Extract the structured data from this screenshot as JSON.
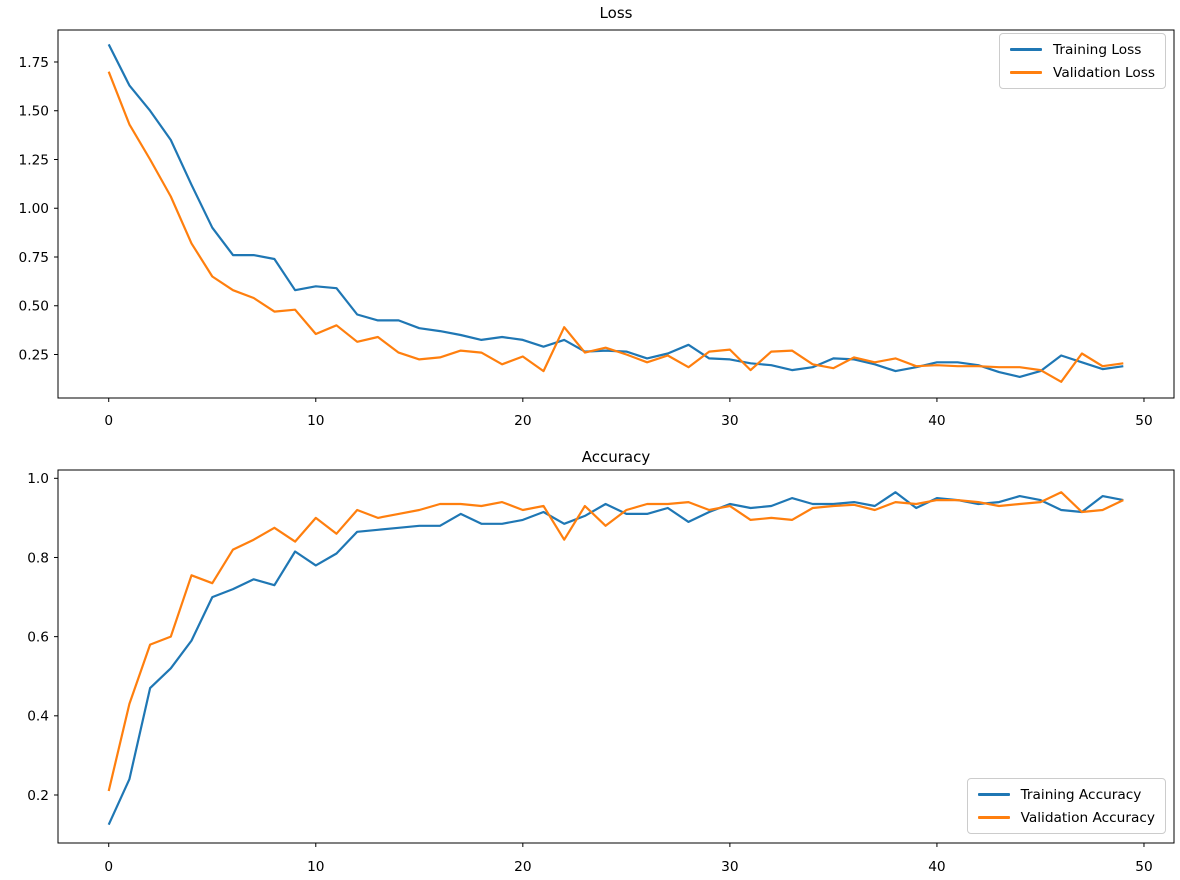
{
  "figure": {
    "background": "#ffffff"
  },
  "chart_data": [
    {
      "type": "line",
      "title": "Loss",
      "xlabel": "",
      "ylabel": "",
      "grid": false,
      "legend_position": "top-right",
      "xlim": [
        -2.45,
        51.45
      ],
      "ylim": [
        0.027,
        1.914
      ],
      "xticks": [
        0,
        10,
        20,
        30,
        40,
        50
      ],
      "yticks": [
        0.25,
        0.5,
        0.75,
        1.0,
        1.25,
        1.5,
        1.75
      ],
      "ytick_labels": [
        "0.25",
        "0.50",
        "0.75",
        "1.00",
        "1.25",
        "1.50",
        "1.75"
      ],
      "x": [
        0,
        1,
        2,
        3,
        4,
        5,
        6,
        7,
        8,
        9,
        10,
        11,
        12,
        13,
        14,
        15,
        16,
        17,
        18,
        19,
        20,
        21,
        22,
        23,
        24,
        25,
        26,
        27,
        28,
        29,
        30,
        31,
        32,
        33,
        34,
        35,
        36,
        37,
        38,
        39,
        40,
        41,
        42,
        43,
        44,
        45,
        46,
        47,
        48,
        49
      ],
      "series": [
        {
          "name": "Training Loss",
          "color": "#1f77b4",
          "values": [
            1.84,
            1.63,
            1.5,
            1.35,
            1.12,
            0.9,
            0.76,
            0.76,
            0.74,
            0.58,
            0.6,
            0.59,
            0.455,
            0.425,
            0.425,
            0.385,
            0.37,
            0.35,
            0.325,
            0.34,
            0.325,
            0.29,
            0.325,
            0.265,
            0.27,
            0.265,
            0.23,
            0.255,
            0.3,
            0.23,
            0.225,
            0.205,
            0.195,
            0.17,
            0.185,
            0.23,
            0.225,
            0.2,
            0.165,
            0.185,
            0.21,
            0.21,
            0.195,
            0.16,
            0.135,
            0.165,
            0.245,
            0.21,
            0.175,
            0.19
          ]
        },
        {
          "name": "Validation Loss",
          "color": "#ff7f0e",
          "values": [
            1.7,
            1.43,
            1.25,
            1.06,
            0.82,
            0.65,
            0.58,
            0.54,
            0.47,
            0.48,
            0.355,
            0.4,
            0.315,
            0.34,
            0.26,
            0.225,
            0.235,
            0.27,
            0.26,
            0.2,
            0.24,
            0.165,
            0.39,
            0.26,
            0.285,
            0.25,
            0.21,
            0.245,
            0.185,
            0.265,
            0.275,
            0.17,
            0.265,
            0.27,
            0.2,
            0.18,
            0.235,
            0.21,
            0.23,
            0.19,
            0.195,
            0.19,
            0.19,
            0.185,
            0.185,
            0.17,
            0.11,
            0.255,
            0.19,
            0.205
          ]
        }
      ]
    },
    {
      "type": "line",
      "title": "Accuracy",
      "xlabel": "",
      "ylabel": "",
      "grid": false,
      "legend_position": "bottom-right",
      "xlim": [
        -2.45,
        51.45
      ],
      "ylim": [
        0.0787,
        1.021
      ],
      "xticks": [
        0,
        10,
        20,
        30,
        40,
        50
      ],
      "yticks": [
        0.2,
        0.4,
        0.6,
        0.8,
        1.0
      ],
      "ytick_labels": [
        "0.2",
        "0.4",
        "0.6",
        "0.8",
        "1.0"
      ],
      "x": [
        0,
        1,
        2,
        3,
        4,
        5,
        6,
        7,
        8,
        9,
        10,
        11,
        12,
        13,
        14,
        15,
        16,
        17,
        18,
        19,
        20,
        21,
        22,
        23,
        24,
        25,
        26,
        27,
        28,
        29,
        30,
        31,
        32,
        33,
        34,
        35,
        36,
        37,
        38,
        39,
        40,
        41,
        42,
        43,
        44,
        45,
        46,
        47,
        48,
        49
      ],
      "series": [
        {
          "name": "Training Accuracy",
          "color": "#1f77b4",
          "values": [
            0.125,
            0.24,
            0.47,
            0.52,
            0.59,
            0.7,
            0.72,
            0.745,
            0.73,
            0.815,
            0.78,
            0.81,
            0.865,
            0.87,
            0.875,
            0.88,
            0.88,
            0.91,
            0.885,
            0.885,
            0.895,
            0.915,
            0.885,
            0.905,
            0.935,
            0.91,
            0.91,
            0.925,
            0.89,
            0.915,
            0.935,
            0.925,
            0.93,
            0.95,
            0.935,
            0.935,
            0.94,
            0.93,
            0.965,
            0.925,
            0.95,
            0.945,
            0.935,
            0.94,
            0.955,
            0.945,
            0.92,
            0.915,
            0.955,
            0.945
          ]
        },
        {
          "name": "Validation Accuracy",
          "color": "#ff7f0e",
          "values": [
            0.21,
            0.43,
            0.58,
            0.6,
            0.755,
            0.735,
            0.82,
            0.845,
            0.875,
            0.84,
            0.9,
            0.86,
            0.92,
            0.9,
            0.91,
            0.92,
            0.935,
            0.935,
            0.93,
            0.94,
            0.92,
            0.93,
            0.845,
            0.93,
            0.88,
            0.92,
            0.935,
            0.935,
            0.94,
            0.92,
            0.93,
            0.895,
            0.9,
            0.895,
            0.925,
            0.93,
            0.933,
            0.92,
            0.94,
            0.935,
            0.945,
            0.945,
            0.94,
            0.93,
            0.935,
            0.94,
            0.965,
            0.915,
            0.92,
            0.945
          ]
        }
      ]
    }
  ],
  "axis_style": {
    "spine_color": "#000000",
    "tick_color": "#000000",
    "label_color": "#000000"
  }
}
